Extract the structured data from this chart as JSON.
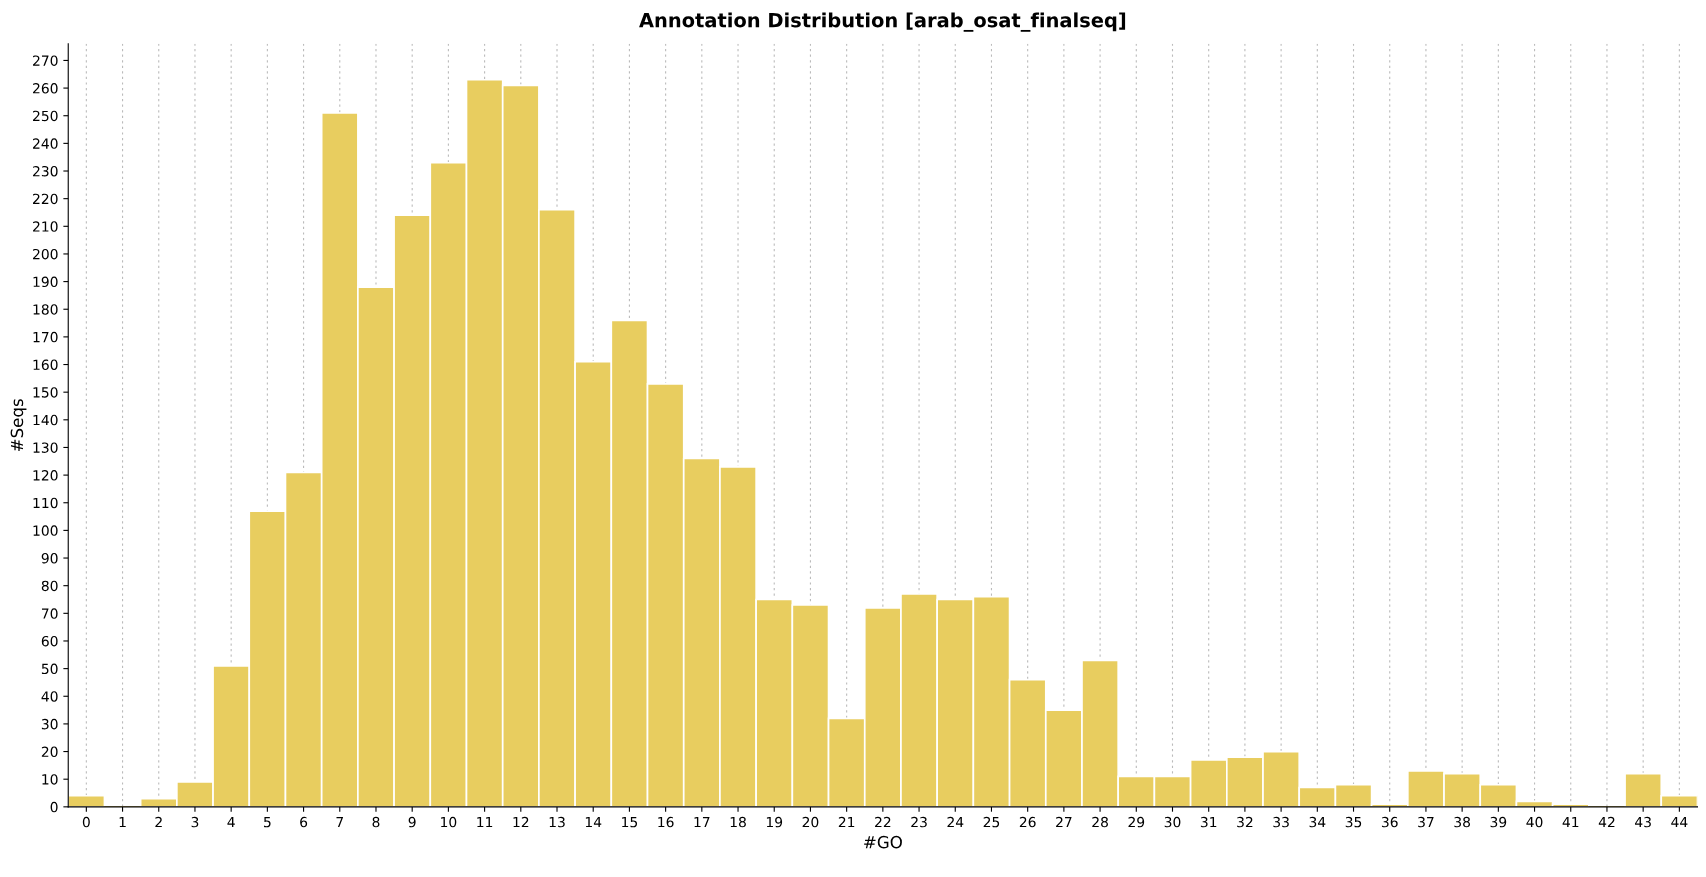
{
  "chart_data": {
    "type": "bar",
    "title": "Annotation Distribution [arab_osat_finalseq]",
    "xlabel": "#GO",
    "ylabel": "#Seqs",
    "categories": [
      "0",
      "1",
      "2",
      "3",
      "4",
      "5",
      "6",
      "7",
      "8",
      "9",
      "10",
      "11",
      "12",
      "13",
      "14",
      "15",
      "16",
      "17",
      "18",
      "19",
      "20",
      "21",
      "22",
      "23",
      "24",
      "25",
      "26",
      "27",
      "28",
      "29",
      "30",
      "31",
      "32",
      "33",
      "34",
      "35",
      "36",
      "37",
      "38",
      "39",
      "40",
      "41",
      "42",
      "43",
      "44"
    ],
    "values": [
      4,
      0,
      3,
      9,
      51,
      107,
      121,
      251,
      188,
      214,
      233,
      263,
      261,
      216,
      161,
      176,
      153,
      126,
      123,
      75,
      73,
      32,
      72,
      77,
      75,
      76,
      46,
      35,
      53,
      11,
      11,
      17,
      18,
      20,
      7,
      8,
      1,
      13,
      12,
      8,
      2,
      1,
      0,
      12,
      4
    ],
    "color": "#e8cd5f",
    "ylim": [
      0,
      276
    ],
    "yticks": [
      0,
      10,
      20,
      30,
      40,
      50,
      60,
      70,
      80,
      90,
      100,
      110,
      120,
      130,
      140,
      150,
      160,
      170,
      180,
      190,
      200,
      210,
      220,
      230,
      240,
      250,
      260,
      270
    ],
    "grid": "x"
  }
}
